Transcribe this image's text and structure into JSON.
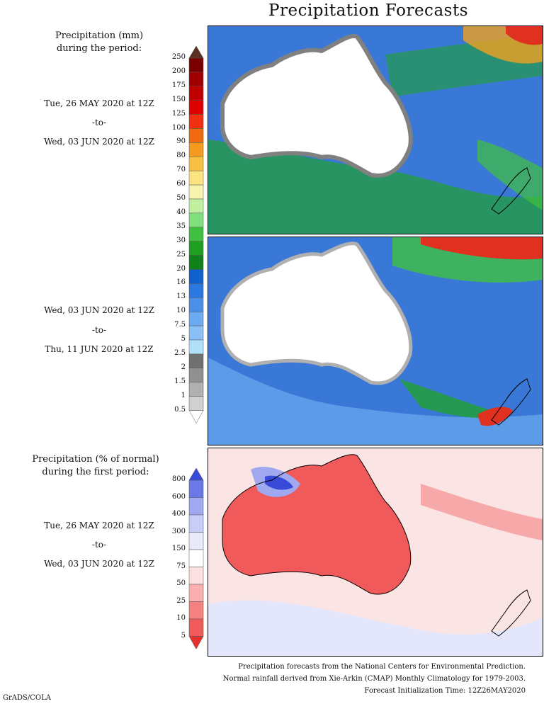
{
  "title": "Precipitation Forecasts",
  "section1": {
    "header": [
      "Precipitation (mm)",
      "during the period:"
    ],
    "period1": [
      "Tue, 26 MAY 2020 at 12Z",
      "-to-",
      "Wed, 03 JUN 2020 at 12Z"
    ],
    "period2": [
      "Wed, 03 JUN 2020 at 12Z",
      "-to-",
      "Thu, 11 JUN 2020 at 12Z"
    ],
    "scale_ticks": [
      "250",
      "200",
      "175",
      "150",
      "125",
      "100",
      "90",
      "80",
      "70",
      "60",
      "50",
      "40",
      "35",
      "30",
      "25",
      "20",
      "16",
      "13",
      "10",
      "7.5",
      "5",
      "2.5",
      "2",
      "1.5",
      "1",
      "0.5"
    ],
    "scale_colors": [
      "#5a3020",
      "#7a0000",
      "#a00000",
      "#c00000",
      "#e00000",
      "#f03010",
      "#f26a10",
      "#f59a20",
      "#f8c040",
      "#fbe480",
      "#f8f4b0",
      "#c0f0a0",
      "#80e080",
      "#40c040",
      "#20a020",
      "#10801a",
      "#1060d0",
      "#2a78e0",
      "#4a90e8",
      "#6aaaf0",
      "#8ac0f5",
      "#b0e0fa",
      "#707070",
      "#909090",
      "#b0b0b0",
      "#d0d0d0",
      "#ffffff"
    ],
    "panel1_colors": {
      "ocean": "#3a78d8",
      "land": "#ffffff",
      "rain": "#20a030",
      "heavy": "#e03020"
    },
    "panel2_colors": {
      "ocean": "#3a78d8",
      "land": "#ffffff",
      "rain": "#20a030",
      "heavy": "#e03020"
    }
  },
  "section2": {
    "header": [
      "Precipitation (% of normal)",
      "during the first period:"
    ],
    "period": [
      "Tue, 26 MAY 2020 at 12Z",
      "-to-",
      "Wed, 03 JUN 2020 at 12Z"
    ],
    "scale_ticks": [
      "800",
      "600",
      "400",
      "300",
      "150",
      "75",
      "50",
      "25",
      "10",
      "5"
    ],
    "scale_colors": [
      "#3a4ad8",
      "#6a78e8",
      "#a0a8f0",
      "#c8ccf8",
      "#e8eafc",
      "#ffffff",
      "#fde0e0",
      "#fab0b0",
      "#f58080",
      "#f05a5a",
      "#e83030"
    ]
  },
  "footer": [
    "Precipitation forecasts from the National Centers for Environmental Prediction.",
    "Normal rainfall derived from Xie-Arkin (CMAP) Monthly Climatology for 1979-2003.",
    "Forecast Initialization Time: 12Z26MAY2020"
  ],
  "credit": "GrADS/COLA"
}
